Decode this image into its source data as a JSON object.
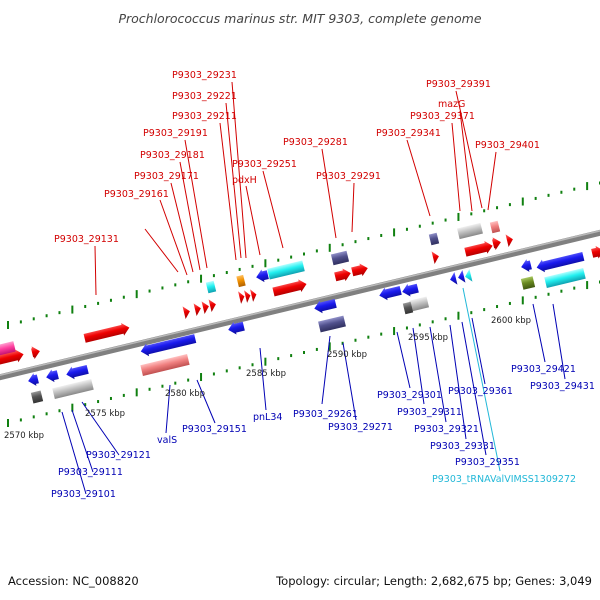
{
  "title": "Prochlorococcus marinus str. MIT 9303, complete genome",
  "footer": {
    "accession": "Accession: NC_008820",
    "topology": "Topology: circular; Length: 2,682,675 bp; Genes: 3,049"
  },
  "colors": {
    "upper_label": "#d20000",
    "lower_label": "#0000b4",
    "trna_label": "#22b8d8",
    "red_gene": "#ee0000",
    "blue_gene": "#1a1aee",
    "cyan_gene": "#22f0f0",
    "pink_gene": "#f08080",
    "purple_gene": "#50508c",
    "gray_gene": "#c0c0c0",
    "dark_gray_gene": "#555555",
    "olive_gene": "#6a8a20",
    "orange_gene": "#f09000",
    "magenta_gene": "#ff40a0",
    "tick_green": "#108010",
    "backbone": "#808080"
  },
  "kbp_labels": [
    "2570 kbp",
    "2575 kbp",
    "2580 kbp",
    "2585 kbp",
    "2590 kbp",
    "2595 kbp",
    "2600 kbp"
  ],
  "upper_labels": [
    "P9303_29231",
    "P9303_29221",
    "P9303_29211",
    "P9303_29191",
    "P9303_29181",
    "P9303_29251",
    "pdxH",
    "P9303_29171",
    "P9303_29161",
    "P9303_29131",
    "P9303_29281",
    "P9303_29291",
    "P9303_29391",
    "mazG",
    "P9303_29371",
    "P9303_29341",
    "P9303_29401"
  ],
  "lower_labels": [
    "P9303_29121",
    "P9303_29111",
    "P9303_29101",
    "valS",
    "P9303_29151",
    "pnL34",
    "P9303_29261",
    "P9303_29271",
    "P9303_29301",
    "P9303_29311",
    "P9303_29321",
    "P9303_29331",
    "P9303_29351",
    "P9303_29361",
    "P9303_29421",
    "P9303_29431",
    "P9303_tRNAValVIMSS1309272"
  ]
}
